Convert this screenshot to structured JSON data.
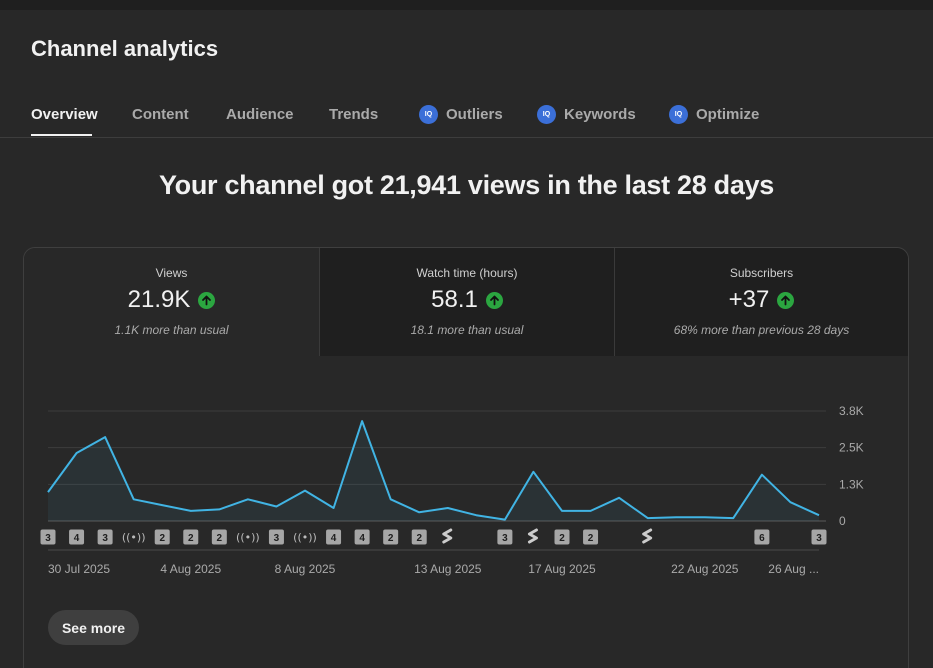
{
  "page_title": "Channel analytics",
  "tabs": [
    {
      "label": "Overview",
      "badge": null,
      "active": true
    },
    {
      "label": "Content",
      "badge": null
    },
    {
      "label": "Audience",
      "badge": null
    },
    {
      "label": "Trends",
      "badge": null
    },
    {
      "label": "Outliers",
      "badge": "IQ"
    },
    {
      "label": "Keywords",
      "badge": "IQ"
    },
    {
      "label": "Optimize",
      "badge": "IQ"
    }
  ],
  "headline": "Your channel got 21,941 views in the last 28 days",
  "metrics": [
    {
      "label": "Views",
      "value": "21.9K",
      "trend": "up",
      "note": "1.1K more than usual"
    },
    {
      "label": "Watch time (hours)",
      "value": "58.1",
      "trend": "up",
      "note": "18.1 more than usual"
    },
    {
      "label": "Subscribers",
      "value": "+37",
      "trend": "up",
      "note": "68% more than previous 28 days"
    }
  ],
  "see_more_label": "See more",
  "colors": {
    "line": "#41b4e4",
    "up_badge": "#2ba640",
    "iq_badge": "#3b6fd8"
  },
  "chart_data": {
    "type": "area",
    "y_ticks": [
      "3.8K",
      "2.5K",
      "1.3K",
      "0"
    ],
    "ylim": [
      0,
      3800
    ],
    "x_tick_labels": [
      "30 Jul 2025",
      "4 Aug 2025",
      "8 Aug 2025",
      "13 Aug 2025",
      "17 Aug 2025",
      "22 Aug 2025",
      "26 Aug ..."
    ],
    "x": [
      "30 Jul 2025",
      "31 Jul 2025",
      "1 Aug 2025",
      "2 Aug 2025",
      "3 Aug 2025",
      "4 Aug 2025",
      "5 Aug 2025",
      "6 Aug 2025",
      "7 Aug 2025",
      "8 Aug 2025",
      "9 Aug 2025",
      "10 Aug 2025",
      "11 Aug 2025",
      "12 Aug 2025",
      "13 Aug 2025",
      "14 Aug 2025",
      "15 Aug 2025",
      "16 Aug 2025",
      "17 Aug 2025",
      "18 Aug 2025",
      "19 Aug 2025",
      "20 Aug 2025",
      "21 Aug 2025",
      "22 Aug 2025",
      "23 Aug 2025",
      "24 Aug 2025",
      "25 Aug 2025",
      "26 Aug 2025"
    ],
    "series": [
      {
        "values": [
          1000,
          2350,
          2900,
          750,
          550,
          350,
          400,
          750,
          500,
          1050,
          450,
          3450,
          750,
          300,
          450,
          200,
          50,
          1700,
          350,
          350,
          800,
          100,
          130,
          130,
          100,
          1600,
          650,
          200
        ]
      }
    ],
    "uploads": [
      {
        "day": "30 Jul 2025",
        "marker": "3"
      },
      {
        "day": "31 Jul 2025",
        "marker": "4"
      },
      {
        "day": "1 Aug 2025",
        "marker": "3"
      },
      {
        "day": "2 Aug 2025",
        "marker": "live"
      },
      {
        "day": "3 Aug 2025",
        "marker": "2"
      },
      {
        "day": "4 Aug 2025",
        "marker": "2"
      },
      {
        "day": "5 Aug 2025",
        "marker": "2"
      },
      {
        "day": "6 Aug 2025",
        "marker": "live"
      },
      {
        "day": "7 Aug 2025",
        "marker": "3"
      },
      {
        "day": "8 Aug 2025",
        "marker": "live"
      },
      {
        "day": "9 Aug 2025",
        "marker": "4"
      },
      {
        "day": "10 Aug 2025",
        "marker": "4"
      },
      {
        "day": "11 Aug 2025",
        "marker": "2"
      },
      {
        "day": "12 Aug 2025",
        "marker": "2"
      },
      {
        "day": "13 Aug 2025",
        "marker": "short"
      },
      {
        "day": "15 Aug 2025",
        "marker": "3"
      },
      {
        "day": "16 Aug 2025",
        "marker": "short"
      },
      {
        "day": "17 Aug 2025",
        "marker": "2"
      },
      {
        "day": "18 Aug 2025",
        "marker": "2"
      },
      {
        "day": "20 Aug 2025",
        "marker": "short"
      },
      {
        "day": "24 Aug 2025",
        "marker": "6"
      },
      {
        "day": "26 Aug 2025",
        "marker": "3"
      }
    ],
    "grid": true
  }
}
